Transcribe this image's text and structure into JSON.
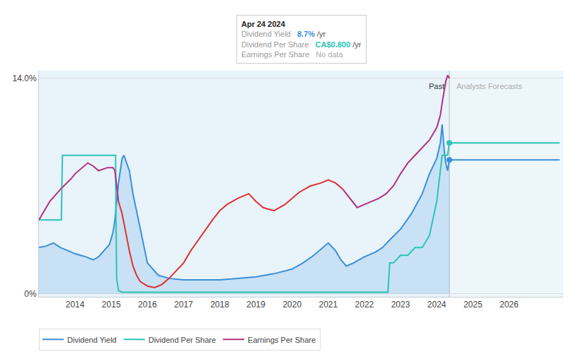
{
  "chart_data": {
    "type": "line",
    "xlim": [
      2013.0,
      2027.5
    ],
    "xticks": [
      2014,
      2015,
      2016,
      2017,
      2018,
      2019,
      2020,
      2021,
      2022,
      2023,
      2024,
      2025,
      2026
    ],
    "ylim": [
      -0.002,
      0.145
    ],
    "yticks": [
      {
        "value": 0.0,
        "label": "0%"
      },
      {
        "value": 0.14,
        "label": "14.0%"
      }
    ],
    "grid": true,
    "legend": "lower left",
    "divider": 2024.35,
    "region_colors": [
      "#cde4f5",
      "#deeef8"
    ],
    "annotations": [
      {
        "text": "Past",
        "x": 2024.35,
        "y": 0.1385,
        "color": "#333333"
      },
      {
        "text": "Analysts Forecasts",
        "x": 2024.35,
        "y": 0.1385,
        "color": "#aaaaaa"
      }
    ],
    "tooltip": {
      "title": "Apr 24 2024",
      "rows": [
        {
          "label": "Dividend Yield",
          "value": "8.7%",
          "unit": "/yr",
          "color": "#3a8fd9"
        },
        {
          "label": "Dividend Per Share",
          "value": "CA$0.800",
          "unit": "/yr",
          "color": "#2cc4b8"
        },
        {
          "label": "Earnings Per Share",
          "value": "No data",
          "color": "#aaaaaa"
        }
      ]
    },
    "series": [
      {
        "name": "Dividend Yield",
        "type": "line",
        "color": "#3a8fd9",
        "x": [
          2013.0,
          2013.2,
          2013.4,
          2013.6,
          2013.8,
          2014.0,
          2014.15,
          2014.3,
          2014.5,
          2014.65,
          2014.8,
          2014.95,
          2015.05,
          2015.1,
          2015.15,
          2015.2,
          2015.25,
          2015.3,
          2015.35,
          2015.5,
          2015.6,
          2015.75,
          2016.0,
          2016.3,
          2016.6,
          2017.0,
          2017.5,
          2018.0,
          2018.5,
          2019.0,
          2019.5,
          2020.0,
          2020.3,
          2020.6,
          2021.0,
          2021.2,
          2021.35,
          2021.5,
          2021.7,
          2022.0,
          2022.3,
          2022.5,
          2022.7,
          2023.0,
          2023.3,
          2023.6,
          2023.8,
          2024.0,
          2024.1,
          2024.15,
          2024.2,
          2024.25,
          2024.3,
          2024.35,
          2024.5,
          2025.0,
          2025.5,
          2026.0,
          2026.5,
          2027.0,
          2027.4
        ],
        "values": [
          0.03,
          0.031,
          0.033,
          0.03,
          0.028,
          0.026,
          0.025,
          0.024,
          0.022,
          0.024,
          0.028,
          0.032,
          0.04,
          0.048,
          0.06,
          0.072,
          0.08,
          0.088,
          0.09,
          0.08,
          0.065,
          0.048,
          0.02,
          0.012,
          0.01,
          0.009,
          0.009,
          0.009,
          0.01,
          0.011,
          0.013,
          0.016,
          0.02,
          0.025,
          0.033,
          0.028,
          0.022,
          0.018,
          0.02,
          0.024,
          0.027,
          0.03,
          0.035,
          0.042,
          0.052,
          0.065,
          0.078,
          0.088,
          0.098,
          0.11,
          0.095,
          0.085,
          0.08,
          0.087,
          0.087,
          0.087,
          0.087,
          0.087,
          0.087,
          0.087,
          0.087
        ]
      },
      {
        "name": "Dividend Yield",
        "type": "scatter",
        "marker": "circle",
        "color": "#3a8fd9",
        "x": [
          2024.35
        ],
        "values": [
          0.087
        ]
      },
      {
        "name": "Dividend Per Share",
        "type": "line",
        "color": "#2cc4b8",
        "x": [
          2013.0,
          2013.3,
          2013.6,
          2013.62,
          2013.65,
          2013.9,
          2014.0,
          2014.5,
          2014.95,
          2015.0,
          2015.05,
          2015.1,
          2015.12,
          2015.13,
          2015.15,
          2015.2,
          2015.3,
          2015.5,
          2015.8,
          2016.0,
          2016.5,
          2017.0,
          2017.5,
          2018.0,
          2018.5,
          2019.0,
          2019.5,
          2020.0,
          2020.5,
          2021.0,
          2021.4,
          2021.45,
          2021.5,
          2021.6,
          2021.7,
          2021.8,
          2022.0,
          2022.2,
          2022.4,
          2022.5,
          2022.6,
          2022.65,
          2022.7,
          2022.8,
          2023.0,
          2023.2,
          2023.4,
          2023.6,
          2023.8,
          2024.0,
          2024.15,
          2024.2,
          2024.25,
          2024.3,
          2024.35,
          2024.5,
          2025.0,
          2025.5,
          2026.0,
          2026.5,
          2027.0,
          2027.4
        ],
        "values": [
          0.048,
          0.048,
          0.048,
          0.048,
          0.09,
          0.09,
          0.09,
          0.09,
          0.09,
          0.09,
          0.09,
          0.09,
          0.09,
          0.048,
          0.01,
          0.002,
          0.001,
          0.001,
          0.001,
          0.001,
          0.001,
          0.001,
          0.001,
          0.001,
          0.001,
          0.001,
          0.001,
          0.001,
          0.001,
          0.001,
          0.001,
          0.001,
          0.001,
          0.001,
          0.001,
          0.001,
          0.001,
          0.001,
          0.001,
          0.001,
          0.001,
          0.001,
          0.02,
          0.02,
          0.025,
          0.025,
          0.03,
          0.03,
          0.038,
          0.06,
          0.09,
          0.09,
          0.09,
          0.09,
          0.098,
          0.098,
          0.098,
          0.098,
          0.098,
          0.098,
          0.098,
          0.098
        ]
      },
      {
        "name": "Dividend Per Share",
        "type": "scatter",
        "marker": "circle",
        "color": "#2cc4b8",
        "x": [
          2024.35
        ],
        "values": [
          0.098
        ]
      },
      {
        "name": "Earnings Per Share",
        "type": "line",
        "color": "#b03080",
        "x": [
          2013.0,
          2013.3,
          2013.6,
          2013.9,
          2014.0,
          2014.2,
          2014.35,
          2014.5,
          2014.65,
          2014.9,
          2015.0,
          2015.05,
          2015.1,
          2015.15,
          2015.2
        ],
        "values": [
          0.048,
          0.06,
          0.068,
          0.075,
          0.078,
          0.082,
          0.085,
          0.083,
          0.08,
          0.082,
          0.082,
          0.082,
          0.08,
          0.07,
          0.06
        ]
      },
      {
        "name": "Earnings Per Share",
        "type": "line",
        "color": "#e03030",
        "x": [
          2015.2,
          2015.3,
          2015.4,
          2015.5,
          2015.6,
          2015.7,
          2015.8,
          2016.0,
          2016.2,
          2016.4,
          2016.6,
          2016.8,
          2017.0,
          2017.2,
          2017.5,
          2017.8,
          2018.0,
          2018.2,
          2018.5,
          2018.8,
          2019.0,
          2019.2,
          2019.5,
          2019.8,
          2020.0,
          2020.2,
          2020.5,
          2020.8,
          2021.0,
          2021.2,
          2021.3,
          2021.4
        ],
        "values": [
          0.06,
          0.052,
          0.04,
          0.028,
          0.018,
          0.012,
          0.008,
          0.005,
          0.004,
          0.006,
          0.01,
          0.015,
          0.02,
          0.028,
          0.038,
          0.048,
          0.054,
          0.058,
          0.062,
          0.065,
          0.06,
          0.056,
          0.054,
          0.058,
          0.062,
          0.066,
          0.07,
          0.072,
          0.074,
          0.072,
          0.07,
          0.068
        ]
      },
      {
        "name": "Earnings Per Share",
        "type": "line",
        "color": "#b03080",
        "x": [
          2021.4,
          2021.6,
          2021.8,
          2022.0,
          2022.2,
          2022.4,
          2022.6,
          2022.8,
          2023.0,
          2023.2,
          2023.4,
          2023.6,
          2023.8,
          2024.0,
          2024.1,
          2024.15,
          2024.2,
          2024.25,
          2024.3,
          2024.35
        ],
        "values": [
          0.068,
          0.062,
          0.056,
          0.058,
          0.06,
          0.062,
          0.065,
          0.07,
          0.078,
          0.085,
          0.09,
          0.095,
          0.1,
          0.108,
          0.116,
          0.124,
          0.132,
          0.138,
          0.142,
          0.14
        ]
      }
    ]
  }
}
